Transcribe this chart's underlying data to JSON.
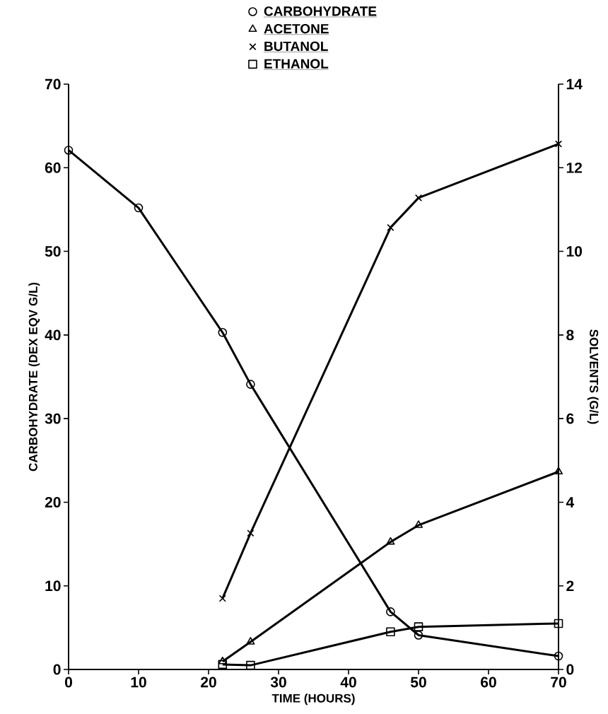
{
  "chart_data": {
    "type": "line",
    "xlabel": "TIME (HOURS)",
    "ylabel": "CARBOHYDRATE (DEX EQV G/L)",
    "y2label": "SOLVENTS (G/L)",
    "xlim": [
      0,
      70
    ],
    "xticks": [
      0,
      10,
      20,
      30,
      40,
      50,
      60,
      70
    ],
    "ylim": [
      0,
      70
    ],
    "yticks": [
      0,
      10,
      20,
      30,
      40,
      50,
      60,
      70
    ],
    "y2lim": [
      0,
      14
    ],
    "y2ticks": [
      0,
      2,
      4,
      6,
      8,
      10,
      12,
      14
    ],
    "legend": "top",
    "grid": false,
    "line_style": "solid",
    "series": [
      {
        "name": "CARBOHYDRATE",
        "color": "#000000",
        "marker": "circle",
        "x": [
          0,
          10,
          22,
          26,
          46,
          50,
          70
        ],
        "values": [
          62.1,
          55.2,
          40.3,
          34.1,
          6.9,
          4.1,
          1.6
        ]
      },
      {
        "name": "ACETONE",
        "color": "#000000",
        "marker": "triangle",
        "axis": "y2",
        "x": [
          22,
          26,
          46,
          50,
          70
        ],
        "values": [
          0.19,
          0.66,
          3.05,
          3.45,
          4.73
        ]
      },
      {
        "name": "BUTANOL",
        "color": "#000000",
        "marker": "cross",
        "axis": "y2",
        "x": [
          22,
          26,
          46,
          50,
          70
        ],
        "values": [
          1.7,
          3.26,
          10.57,
          11.28,
          12.57
        ]
      },
      {
        "name": "ETHANOL",
        "color": "#000000",
        "marker": "square",
        "axis": "y2",
        "x": [
          22,
          26,
          46,
          50,
          70
        ],
        "values": [
          0.12,
          0.1,
          0.9,
          1.02,
          1.1
        ]
      }
    ]
  }
}
